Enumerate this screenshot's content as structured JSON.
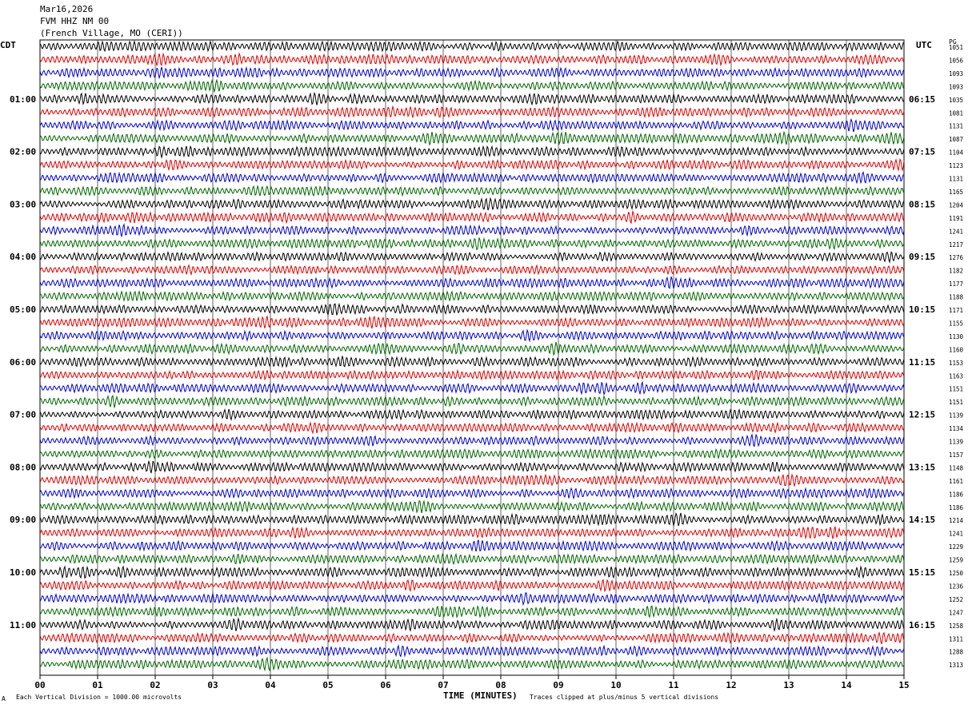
{
  "header": {
    "date": "Mar16,2026",
    "station": "FVM HHZ NM 00",
    "location": "(French Village, MO (CERI))"
  },
  "left_tz": "CDT",
  "right_tz": "UTC",
  "pg_header": "PG",
  "footer": {
    "marker": "A",
    "scale": "Each Vertical Division = 1000.00 microvolts",
    "xlabel": "TIME (MINUTES)",
    "clip": "Traces clipped at plus/minus 5 vertical divisions"
  },
  "chart_data": {
    "type": "line",
    "title": "",
    "xlabel": "TIME (MINUTES)",
    "ylabel": "",
    "xlim": [
      0,
      15
    ],
    "x_ticks": [
      "00",
      "01",
      "02",
      "03",
      "04",
      "05",
      "06",
      "07",
      "08",
      "09",
      "10",
      "11",
      "12",
      "13",
      "14",
      "15"
    ],
    "grid": true,
    "trace_count": 48,
    "trace_colors": [
      "#000000",
      "#dd0000",
      "#0000cc",
      "#006600"
    ],
    "left_hour_labels": [
      "01:00",
      "02:00",
      "03:00",
      "04:00",
      "05:00",
      "06:00",
      "07:00",
      "08:00",
      "09:00",
      "10:00",
      "11:00"
    ],
    "right_hour_labels": [
      "06:15",
      "07:15",
      "08:15",
      "09:15",
      "10:15",
      "11:15",
      "12:15",
      "13:15",
      "14:15",
      "15:15",
      "16:15"
    ],
    "right_values": [
      "1051",
      "1056",
      "1093",
      "1093",
      "1035",
      "1081",
      "1131",
      "1087",
      "1104",
      "1123",
      "1131",
      "1165",
      "1204",
      "1191",
      "1241",
      "1217",
      "1276",
      "1182",
      "1177",
      "1188",
      "1171",
      "1155",
      "1130",
      "1160",
      "1153",
      "1163",
      "1151",
      "1151",
      "1139",
      "1134",
      "1139",
      "1157",
      "1148",
      "1161",
      "1186",
      "1186",
      "1214",
      "1241",
      "1229",
      "1259",
      "1250",
      "1236",
      "1252",
      "1247",
      "1258",
      "1311",
      "1288",
      "1313"
    ]
  }
}
